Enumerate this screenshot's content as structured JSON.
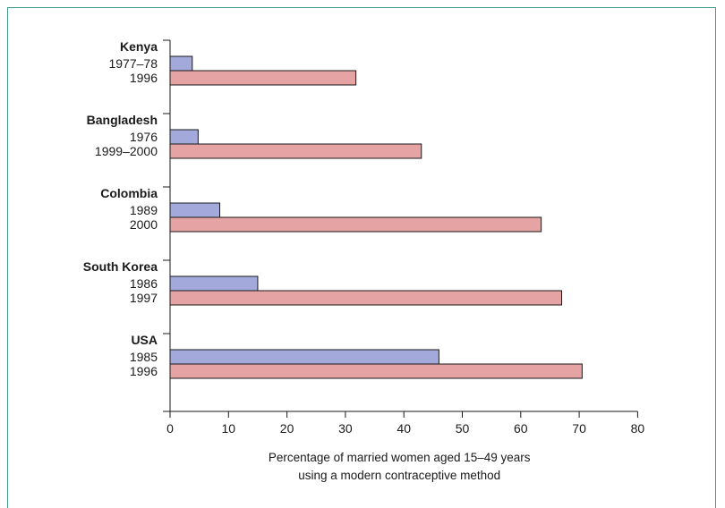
{
  "chart_data": {
    "type": "bar",
    "orientation": "horizontal",
    "groups": [
      {
        "name": "Kenya",
        "bars": [
          {
            "label": "1977–78",
            "value": 3.8
          },
          {
            "label": "1996",
            "value": 31.8
          }
        ]
      },
      {
        "name": "Bangladesh",
        "bars": [
          {
            "label": "1976",
            "value": 4.8
          },
          {
            "label": "1999–2000",
            "value": 43
          }
        ]
      },
      {
        "name": "Colombia",
        "bars": [
          {
            "label": "1989",
            "value": 8.5
          },
          {
            "label": "2000",
            "value": 63.5
          }
        ]
      },
      {
        "name": "South Korea",
        "bars": [
          {
            "label": "1986",
            "value": 15
          },
          {
            "label": "1997",
            "value": 67
          }
        ]
      },
      {
        "name": "USA",
        "bars": [
          {
            "label": "1985",
            "value": 46
          },
          {
            "label": "1996",
            "value": 70.5
          }
        ]
      }
    ],
    "xlabel_line1": "Percentage of married women aged 15–49 years",
    "xlabel_line2": "using a modern contraceptive  method",
    "xlim": [
      0,
      80
    ],
    "xticks": [
      0,
      10,
      20,
      30,
      40,
      50,
      60,
      70,
      80
    ],
    "grid": false,
    "legend": "none",
    "colors": {
      "earlier": "#a3a9db",
      "later": "#e6a3a3",
      "stroke": "#1a1a1a",
      "frame": "#3f9a8c"
    }
  }
}
